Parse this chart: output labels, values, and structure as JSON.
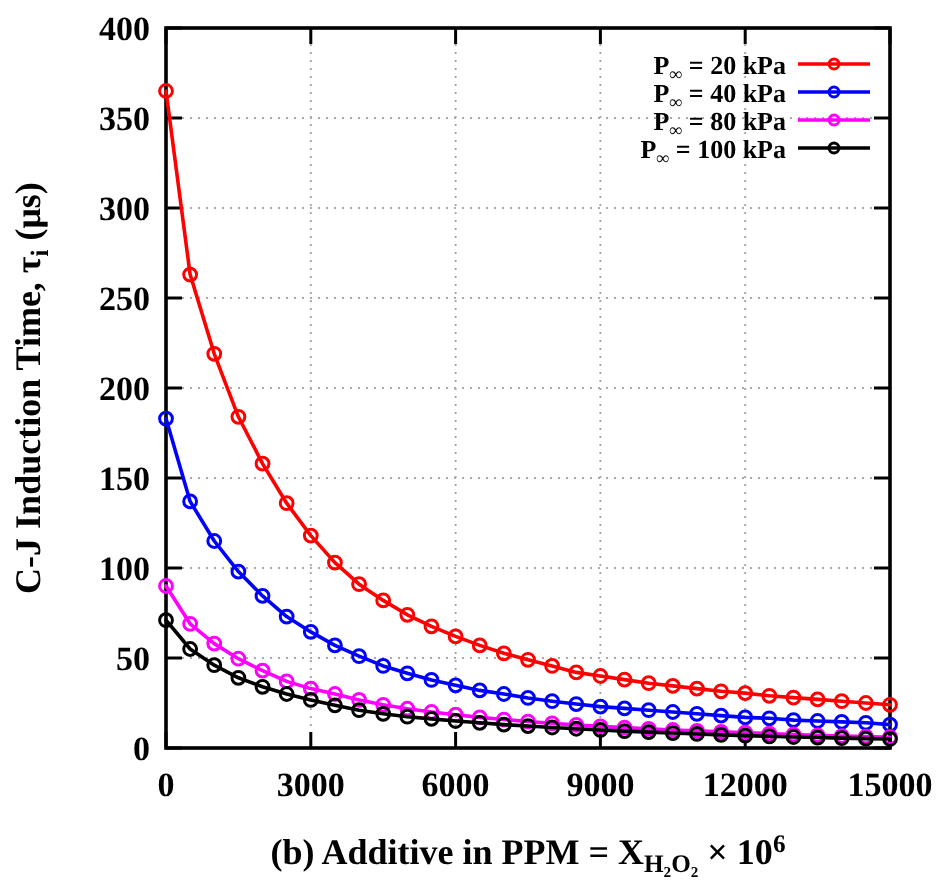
{
  "chart_data": {
    "type": "line",
    "xlabel": "(b) Additive in PPM = X$_{H₂O₂}$ × 10$^{6}$",
    "ylabel": "C-J Induction Time, τ$_{i}$ (μs)",
    "x": [
      0,
      500,
      1000,
      1500,
      2000,
      2500,
      3000,
      3500,
      4000,
      4500,
      5000,
      5500,
      6000,
      6500,
      7000,
      7500,
      8000,
      8500,
      9000,
      9500,
      10000,
      10500,
      11000,
      11500,
      12000,
      12500,
      13000,
      13500,
      14000,
      14500,
      15000
    ],
    "series": [
      {
        "name": "P$_{∞}$ = 20 kPa",
        "color": "#ff0000",
        "values": [
          365,
          263,
          219,
          184,
          158,
          136,
          118,
          103,
          91,
          82,
          74,
          67.6,
          62,
          57,
          52.6,
          49,
          45.6,
          42,
          40,
          38,
          36,
          34.5,
          33,
          31.5,
          30.5,
          29,
          28,
          27,
          26,
          25,
          24
        ]
      },
      {
        "name": "P$_{∞}$ = 40 kPa",
        "color": "#0000ff",
        "values": [
          183,
          137,
          115,
          98,
          84.5,
          73,
          64.5,
          57,
          51,
          45.6,
          41.5,
          37.8,
          34.8,
          32,
          30,
          27.8,
          26,
          24.4,
          23,
          22,
          21,
          20,
          19,
          18,
          17,
          16.5,
          15.5,
          15,
          14.5,
          14,
          13
        ]
      },
      {
        "name": "P$_{∞}$ = 80 kPa",
        "color": "#ff00ff",
        "values": [
          90,
          69,
          58,
          49.6,
          43,
          37,
          33,
          30,
          26.7,
          24,
          21.8,
          20,
          18.5,
          17,
          15.8,
          14.7,
          13.7,
          12.8,
          12,
          11.3,
          10.6,
          10,
          9.5,
          9,
          8.5,
          8,
          7.5,
          7,
          6.6,
          6.3,
          6
        ]
      },
      {
        "name": "P$_{∞}$ = 100 kPa",
        "color": "#000000",
        "values": [
          71,
          55,
          46,
          39,
          34,
          30,
          26.7,
          23.7,
          21,
          19,
          17.4,
          16.2,
          15,
          14,
          13,
          12.2,
          11.4,
          10.7,
          10,
          9.4,
          8.8,
          8.3,
          7.8,
          7.3,
          6.9,
          6.5,
          6.1,
          5.8,
          5.5,
          5.2,
          5
        ]
      }
    ],
    "xlim": [
      0,
      15000
    ],
    "xticks": [
      0,
      3000,
      6000,
      9000,
      12000,
      15000
    ],
    "ylim": [
      0,
      400
    ],
    "yticks": [
      0,
      50,
      100,
      150,
      200,
      250,
      300,
      350,
      400
    ],
    "grid": true,
    "legend": "top right",
    "marker": "circle",
    "line_style": "solid"
  }
}
